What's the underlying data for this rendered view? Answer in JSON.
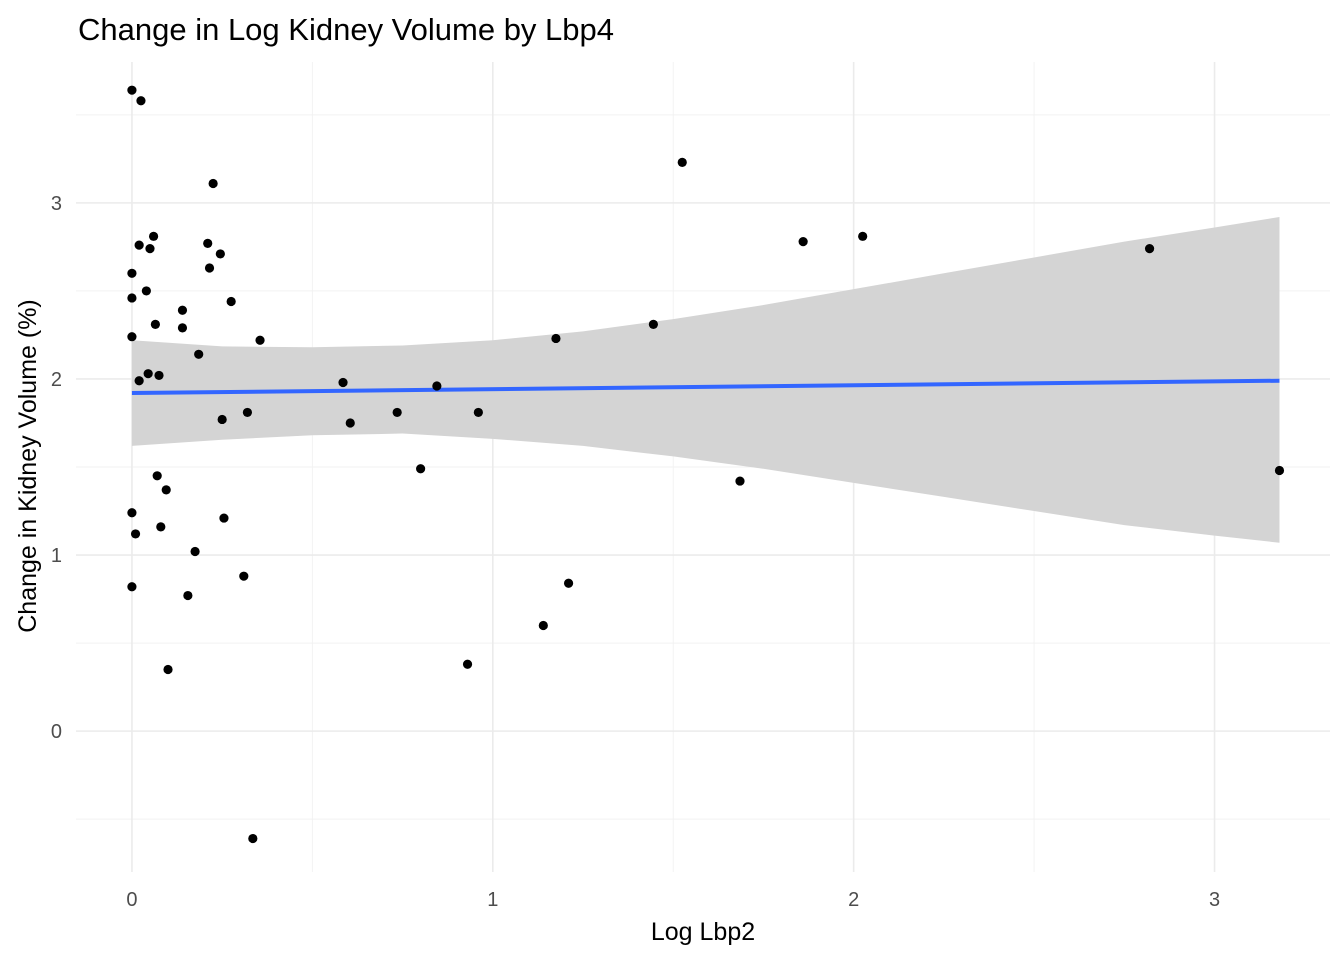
{
  "chart_data": {
    "type": "scatter",
    "title": "Change in Log Kidney Volume by Lbp4",
    "xlabel": "Log Lbp2",
    "ylabel": "Change in Kidney Volume (%)",
    "xlim": [
      -0.155,
      3.32
    ],
    "ylim": [
      -0.8,
      3.8
    ],
    "x_ticks": [
      0,
      1,
      2,
      3
    ],
    "x_tick_labels": [
      "0",
      "1",
      "2",
      "3"
    ],
    "y_ticks": [
      0,
      1,
      2,
      3
    ],
    "y_tick_labels": [
      "0",
      "1",
      "2",
      "3"
    ],
    "grid": true,
    "legend": "none",
    "points": [
      {
        "x": 0.0,
        "y": 3.64
      },
      {
        "x": 0.025,
        "y": 3.58
      },
      {
        "x": 0.0,
        "y": 2.6
      },
      {
        "x": 0.0,
        "y": 2.46
      },
      {
        "x": 0.0,
        "y": 2.24
      },
      {
        "x": 0.0,
        "y": 1.24
      },
      {
        "x": 0.01,
        "y": 1.12
      },
      {
        "x": 0.0,
        "y": 0.82
      },
      {
        "x": 0.02,
        "y": 2.76
      },
      {
        "x": 0.02,
        "y": 1.99
      },
      {
        "x": 0.04,
        "y": 2.5
      },
      {
        "x": 0.045,
        "y": 2.03
      },
      {
        "x": 0.05,
        "y": 2.74
      },
      {
        "x": 0.06,
        "y": 2.81
      },
      {
        "x": 0.065,
        "y": 2.31
      },
      {
        "x": 0.07,
        "y": 1.45
      },
      {
        "x": 0.075,
        "y": 2.02
      },
      {
        "x": 0.08,
        "y": 1.16
      },
      {
        "x": 0.095,
        "y": 1.37
      },
      {
        "x": 0.1,
        "y": 0.35
      },
      {
        "x": 0.14,
        "y": 2.39
      },
      {
        "x": 0.14,
        "y": 2.29
      },
      {
        "x": 0.155,
        "y": 0.77
      },
      {
        "x": 0.175,
        "y": 1.02
      },
      {
        "x": 0.185,
        "y": 2.14
      },
      {
        "x": 0.21,
        "y": 2.77
      },
      {
        "x": 0.215,
        "y": 2.63
      },
      {
        "x": 0.225,
        "y": 3.11
      },
      {
        "x": 0.245,
        "y": 2.71
      },
      {
        "x": 0.25,
        "y": 1.77
      },
      {
        "x": 0.255,
        "y": 1.21
      },
      {
        "x": 0.275,
        "y": 2.44
      },
      {
        "x": 0.31,
        "y": 0.88
      },
      {
        "x": 0.32,
        "y": 1.81
      },
      {
        "x": 0.335,
        "y": -0.61
      },
      {
        "x": 0.355,
        "y": 2.22
      },
      {
        "x": 0.585,
        "y": 1.98
      },
      {
        "x": 0.605,
        "y": 1.75
      },
      {
        "x": 0.735,
        "y": 1.81
      },
      {
        "x": 0.8,
        "y": 1.49
      },
      {
        "x": 0.845,
        "y": 1.96
      },
      {
        "x": 0.93,
        "y": 0.38
      },
      {
        "x": 0.96,
        "y": 1.81
      },
      {
        "x": 1.14,
        "y": 0.6
      },
      {
        "x": 1.175,
        "y": 2.23
      },
      {
        "x": 1.21,
        "y": 0.84
      },
      {
        "x": 1.445,
        "y": 2.31
      },
      {
        "x": 1.525,
        "y": 3.23
      },
      {
        "x": 1.685,
        "y": 1.42
      },
      {
        "x": 1.86,
        "y": 2.78
      },
      {
        "x": 2.025,
        "y": 2.81
      },
      {
        "x": 2.82,
        "y": 2.74
      },
      {
        "x": 3.18,
        "y": 1.48
      }
    ],
    "fit_line": {
      "method": "linear",
      "color": "#3366ff",
      "x": [
        0.0,
        3.18
      ],
      "y": [
        1.92,
        1.99
      ]
    },
    "confidence_band": {
      "color": "#d4d4d4",
      "x": [
        0.0,
        0.25,
        0.5,
        0.75,
        1.0,
        1.25,
        1.5,
        1.75,
        2.0,
        2.25,
        2.5,
        2.75,
        3.0,
        3.18
      ],
      "upper": [
        2.22,
        2.185,
        2.18,
        2.19,
        2.22,
        2.27,
        2.34,
        2.42,
        2.51,
        2.6,
        2.69,
        2.78,
        2.86,
        2.92
      ],
      "lower": [
        1.62,
        1.655,
        1.68,
        1.69,
        1.66,
        1.62,
        1.56,
        1.49,
        1.41,
        1.33,
        1.25,
        1.17,
        1.11,
        1.07
      ]
    }
  }
}
